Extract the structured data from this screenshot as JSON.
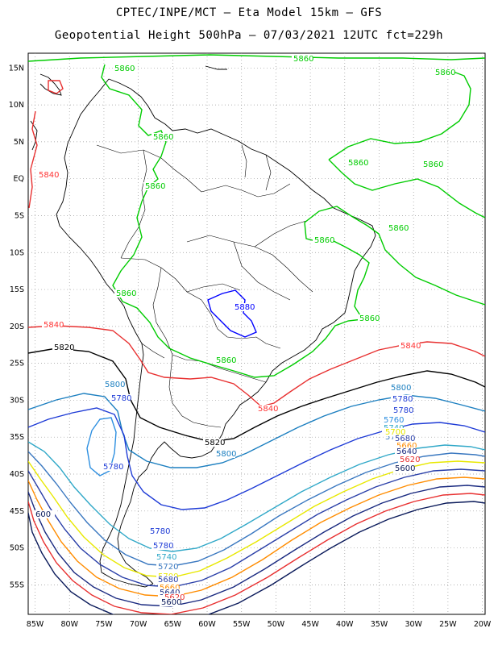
{
  "title_line1": "CPTEC/INPE/MCT –  Eta Model 15km – GFS",
  "title_line2": "Geopotential Height 500hPa – 07/03/2021 12UTC fct=229h",
  "axes": {
    "lon_labels": [
      "85W",
      "80W",
      "75W",
      "70W",
      "65W",
      "60W",
      "55W",
      "50W",
      "45W",
      "40W",
      "35W",
      "30W",
      "25W",
      "20W"
    ],
    "lat_labels": [
      "15N",
      "10N",
      "5N",
      "EQ",
      "5S",
      "10S",
      "15S",
      "20S",
      "25S",
      "30S",
      "35S",
      "40S",
      "45S",
      "50S",
      "55S"
    ]
  },
  "contour_colors": {
    "5880": "#0000ff",
    "5860": "#00cc00",
    "5840": "#ff3333",
    "5820": "#000000",
    "5800": "#1c7fc0",
    "5780": "#1e3bd6",
    "5760": "#2d8fe0",
    "5740": "#30a8c8",
    "5720": "#3a78c0",
    "5700": "#e8e800",
    "5680": "#2a3fa8",
    "5660": "#ff8c00",
    "5640": "#1a2a80",
    "5620": "#e83030",
    "5600": "#0a1a5a"
  },
  "contour_labels": [
    {
      "text": "5860",
      "color": "5860"
    },
    {
      "text": "5860",
      "color": "5860"
    },
    {
      "text": "5860",
      "color": "5860"
    },
    {
      "text": "5860",
      "color": "5860"
    },
    {
      "text": "5860",
      "color": "5860"
    },
    {
      "text": "5860",
      "color": "5860"
    },
    {
      "text": "5860",
      "color": "5860"
    },
    {
      "text": "5860",
      "color": "5860"
    },
    {
      "text": "5860",
      "color": "5860"
    },
    {
      "text": "5860",
      "color": "5860"
    },
    {
      "text": "5860",
      "color": "5860"
    },
    {
      "text": "5860",
      "color": "5860"
    },
    {
      "text": "5880",
      "color": "5880"
    },
    {
      "text": "5840",
      "color": "5840"
    },
    {
      "text": "5840",
      "color": "5840"
    },
    {
      "text": "5840",
      "color": "5840"
    },
    {
      "text": "5840",
      "color": "5840"
    },
    {
      "text": "5820",
      "color": "5820"
    },
    {
      "text": "5820",
      "color": "5820"
    },
    {
      "text": "5800",
      "color": "5800"
    },
    {
      "text": "5800",
      "color": "5800"
    },
    {
      "text": "5800",
      "color": "5800"
    },
    {
      "text": "5780",
      "color": "5780"
    },
    {
      "text": "5780",
      "color": "5780"
    },
    {
      "text": "5780",
      "color": "5780"
    },
    {
      "text": "5780",
      "color": "5780"
    },
    {
      "text": "5780",
      "color": "5780"
    },
    {
      "text": "5780",
      "color": "5780"
    },
    {
      "text": "5760",
      "color": "5760"
    },
    {
      "text": "5740",
      "color": "5740"
    },
    {
      "text": "5740",
      "color": "5740"
    },
    {
      "text": "5720",
      "color": "5720"
    },
    {
      "text": "5720",
      "color": "5720"
    },
    {
      "text": "5700",
      "color": "5700"
    },
    {
      "text": "5700",
      "color": "5700"
    },
    {
      "text": "5680",
      "color": "5680"
    },
    {
      "text": "5680",
      "color": "5680"
    },
    {
      "text": "5660",
      "color": "5660"
    },
    {
      "text": "5660",
      "color": "5660"
    },
    {
      "text": "5640",
      "color": "5640"
    },
    {
      "text": "5640",
      "color": "5640"
    },
    {
      "text": "5620",
      "color": "5620"
    },
    {
      "text": "5620",
      "color": "5620"
    },
    {
      "text": "5600",
      "color": "5600"
    },
    {
      "text": "5600",
      "color": "5600"
    },
    {
      "text": "600",
      "color": "5600"
    }
  ]
}
